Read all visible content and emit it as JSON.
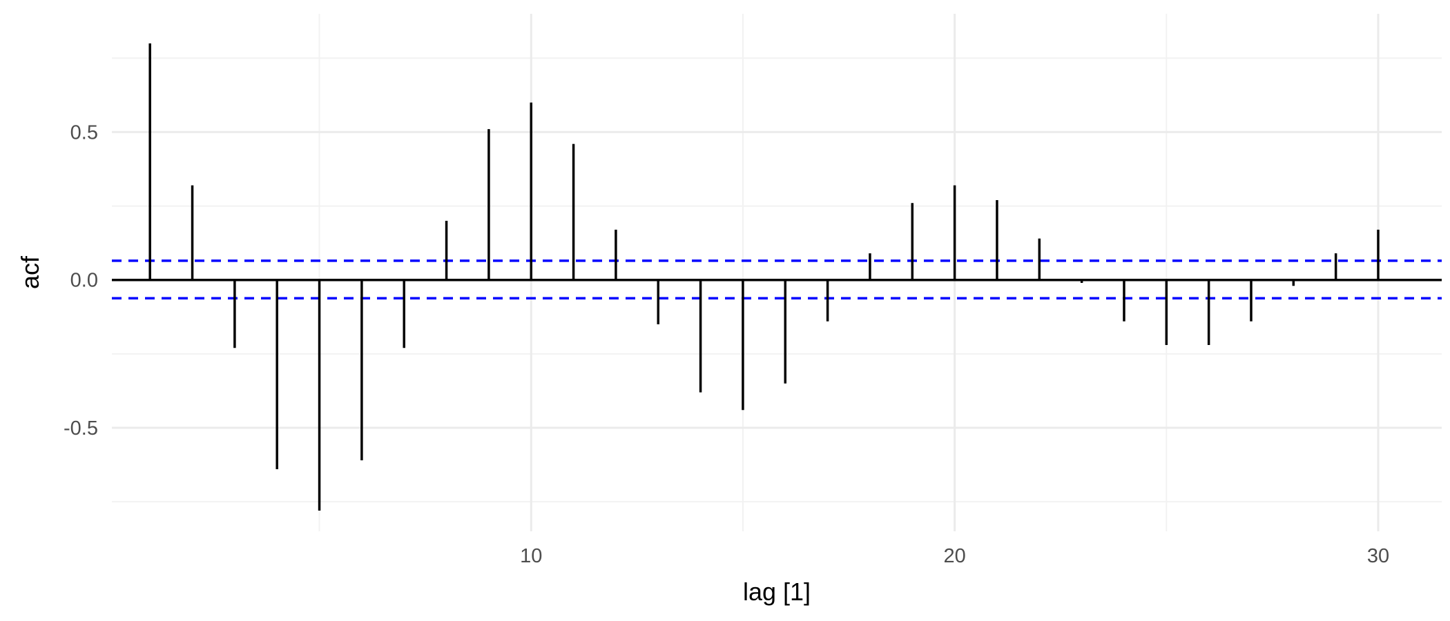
{
  "chart_data": {
    "type": "bar",
    "subtype": "acf-lollipop",
    "xlabel": "lag [1]",
    "ylabel": "acf",
    "x_ticks": [
      10,
      20,
      30
    ],
    "y_ticks": [
      -0.5,
      0.0,
      0.5
    ],
    "y_tick_labels": [
      "-0.5",
      "0.0",
      "0.5"
    ],
    "xlim": [
      0.1,
      31.5
    ],
    "ylim": [
      -0.85,
      0.9
    ],
    "grid": true,
    "legend": "none",
    "ci_bounds": [
      0.065,
      -0.062
    ],
    "colors": {
      "bars": "#000000",
      "ci": "#0000ff",
      "grid": "#ebebeb"
    },
    "lags": [
      1,
      2,
      3,
      4,
      5,
      6,
      7,
      8,
      9,
      10,
      11,
      12,
      13,
      14,
      15,
      16,
      17,
      18,
      19,
      20,
      21,
      22,
      23,
      24,
      25,
      26,
      27,
      28,
      29,
      30
    ],
    "values": [
      0.8,
      0.32,
      -0.23,
      -0.64,
      -0.78,
      -0.61,
      -0.23,
      0.2,
      0.51,
      0.6,
      0.46,
      0.17,
      -0.15,
      -0.38,
      -0.44,
      -0.35,
      -0.14,
      0.09,
      0.26,
      0.32,
      0.27,
      0.14,
      -0.01,
      -0.14,
      -0.22,
      -0.22,
      -0.14,
      -0.02,
      0.09,
      0.17
    ]
  }
}
